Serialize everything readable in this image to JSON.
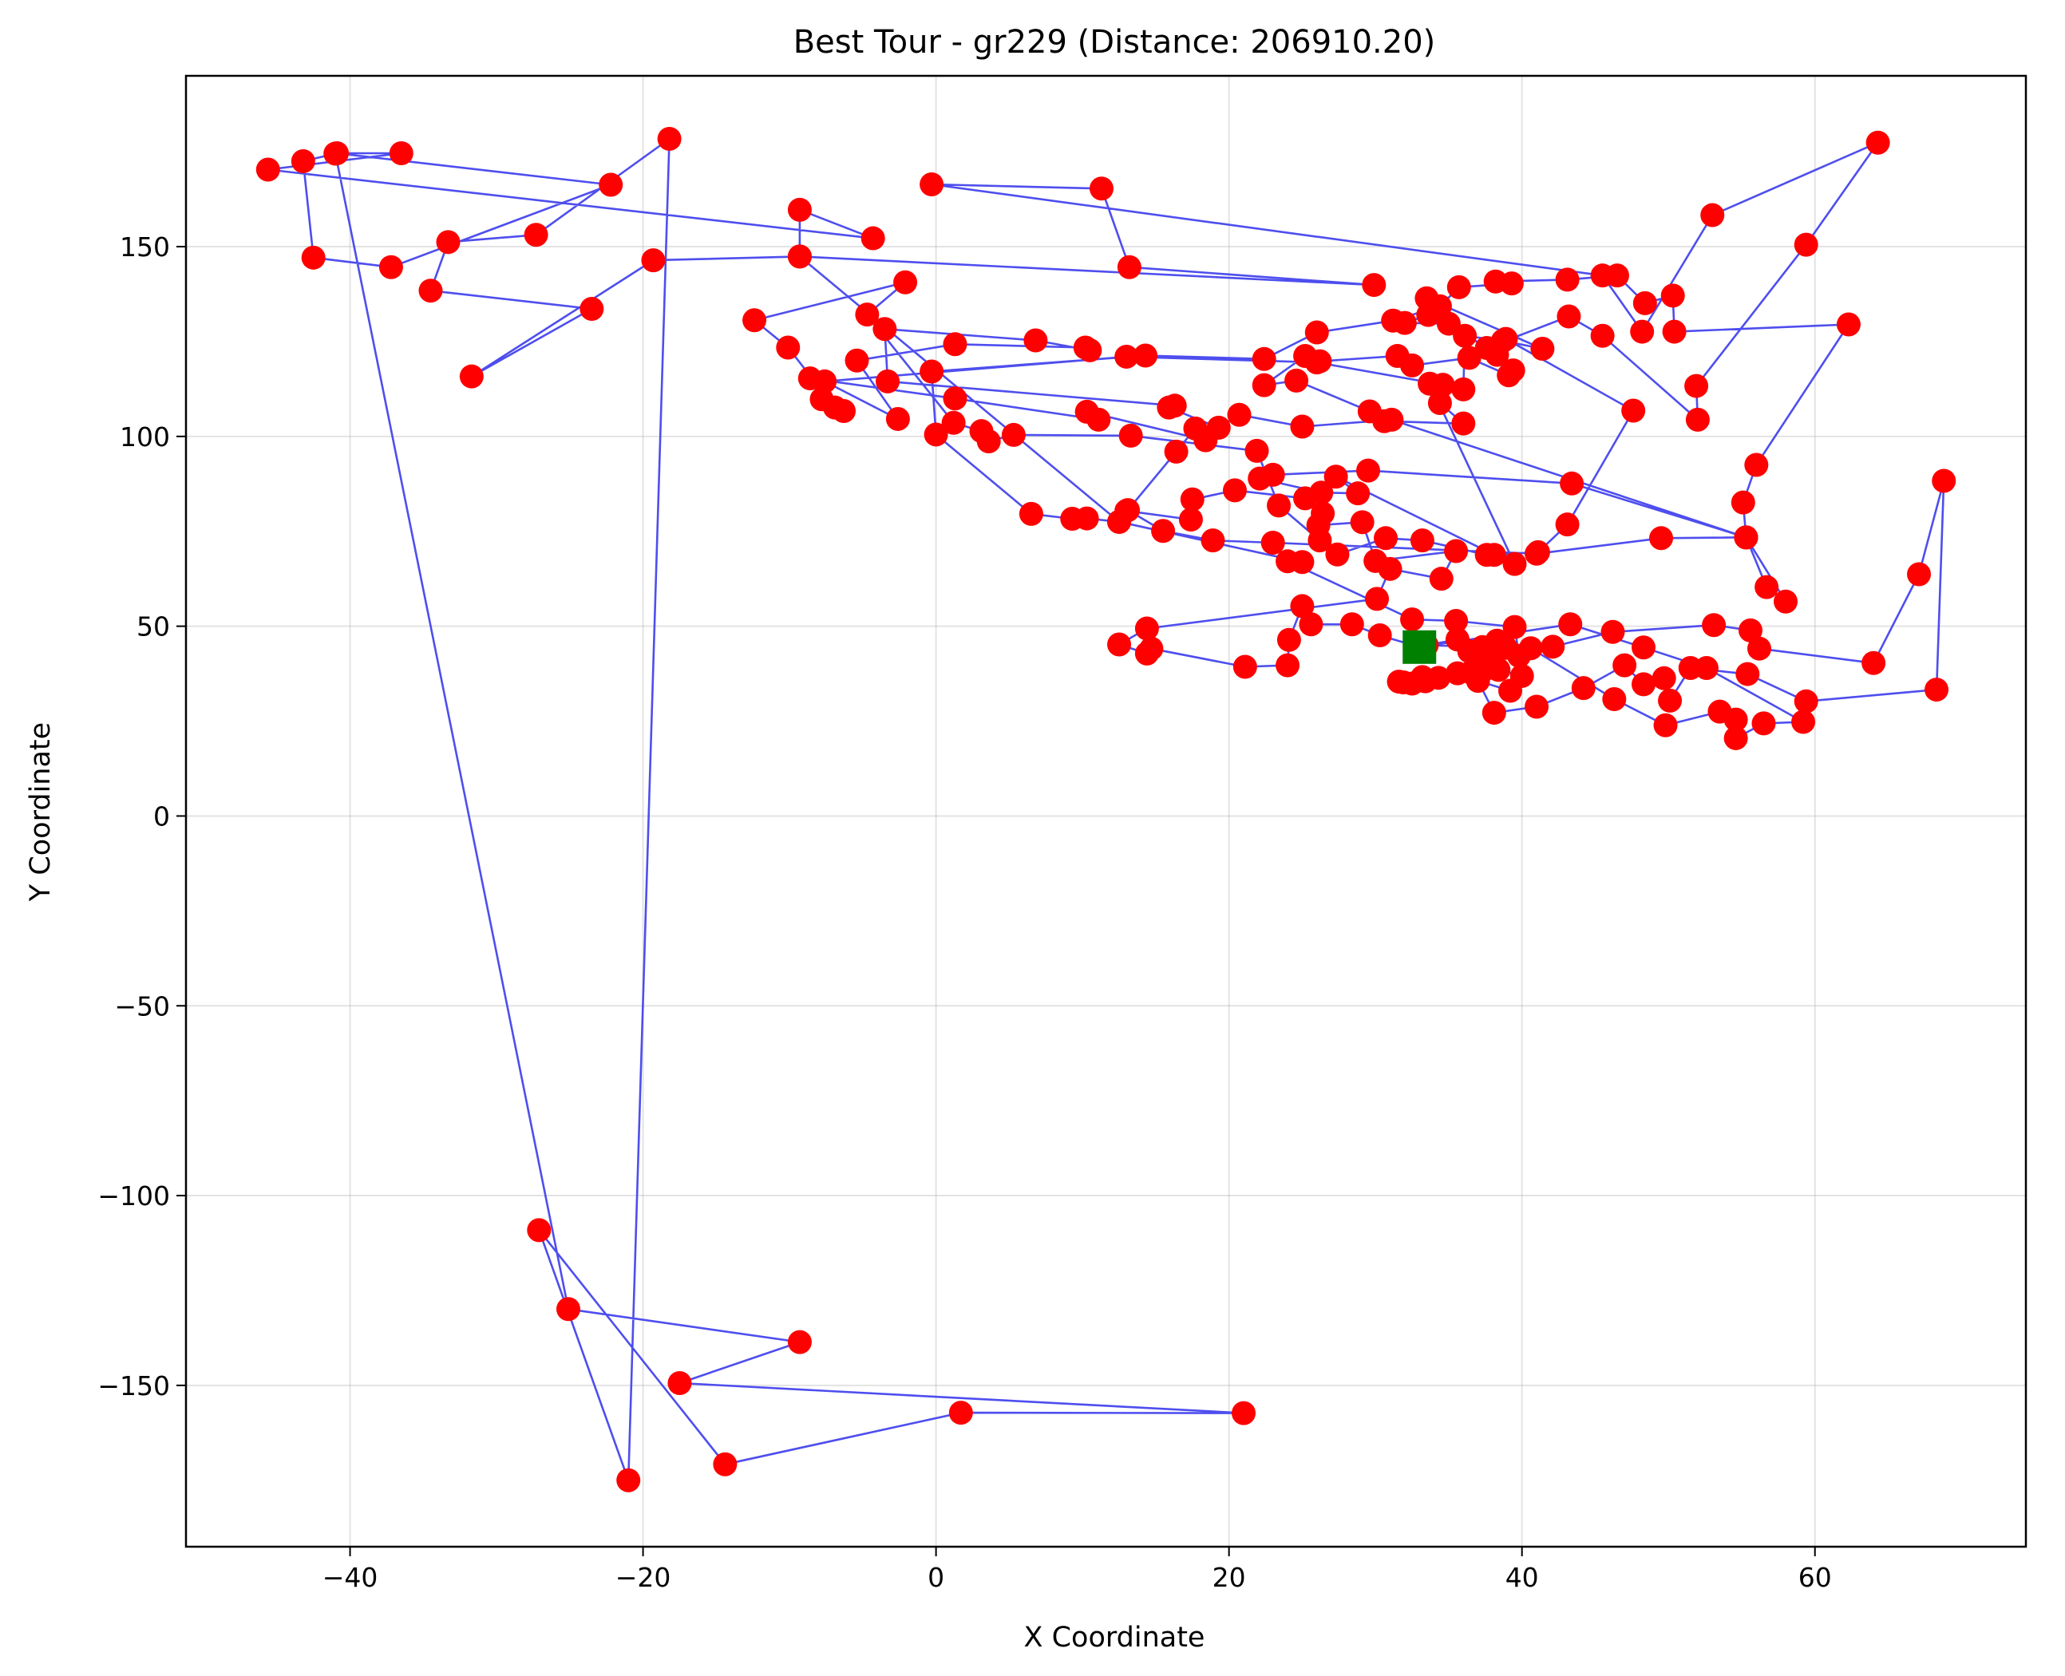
{
  "chart_data": {
    "type": "scatter",
    "title": "Best Tour - gr229 (Distance: 206910.20)",
    "xlabel": "X Coordinate",
    "ylabel": "Y Coordinate",
    "xlim": [
      -51.2,
      74.4
    ],
    "ylim": [
      -192.5,
      195.0
    ],
    "xticks": [
      -40,
      -20,
      0,
      20,
      40,
      60
    ],
    "yticks": [
      -150,
      -100,
      -50,
      0,
      50,
      100,
      150
    ],
    "xtick_labels": [
      "−40",
      "−20",
      "0",
      "20",
      "40",
      "60"
    ],
    "ytick_labels": [
      "−150",
      "−100",
      "−50",
      "0",
      "50",
      "100",
      "150"
    ],
    "grid": true,
    "colors": {
      "tour_line": "#4444ee",
      "city": "#ff0000",
      "start": "#008000"
    },
    "start": {
      "x": 33.0,
      "y": 44.5
    },
    "tour": [
      [
        33.0,
        44.5
      ],
      [
        30.3,
        47.6
      ],
      [
        28.4,
        50.5
      ],
      [
        25.6,
        50.5
      ],
      [
        25.0,
        55.3
      ],
      [
        24.1,
        46.4
      ],
      [
        24.0,
        39.7
      ],
      [
        21.1,
        39.3
      ],
      [
        14.7,
        44.1
      ],
      [
        14.4,
        42.8
      ],
      [
        12.5,
        45.2
      ],
      [
        14.4,
        49.4
      ],
      [
        30.1,
        57.2
      ],
      [
        31.0,
        65.1
      ],
      [
        34.5,
        62.5
      ],
      [
        35.5,
        69.8
      ],
      [
        30.0,
        67.2
      ],
      [
        29.1,
        77.4
      ],
      [
        26.1,
        76.6
      ],
      [
        26.4,
        79.7
      ],
      [
        25.2,
        83.7
      ],
      [
        20.4,
        85.8
      ],
      [
        17.5,
        83.4
      ],
      [
        17.4,
        78.1
      ],
      [
        13.0,
        80.4
      ],
      [
        12.5,
        77.5
      ],
      [
        10.3,
        78.4
      ],
      [
        9.3,
        78.3
      ],
      [
        6.5,
        79.6
      ],
      [
        0.0,
        100.5
      ],
      [
        -0.3,
        117.1
      ],
      [
        14.3,
        121.3
      ],
      [
        22.4,
        120.4
      ],
      [
        26.0,
        127.4
      ],
      [
        31.2,
        130.5
      ],
      [
        34.4,
        134.3
      ],
      [
        35.7,
        139.3
      ],
      [
        39.3,
        140.3
      ],
      [
        38.2,
        140.8
      ],
      [
        43.1,
        141.3
      ],
      [
        46.5,
        142.4
      ],
      [
        48.4,
        135.1
      ],
      [
        50.3,
        137.1
      ],
      [
        50.4,
        127.6
      ],
      [
        62.3,
        129.5
      ],
      [
        56.0,
        92.5
      ],
      [
        55.1,
        82.6
      ],
      [
        55.3,
        73.4
      ],
      [
        56.7,
        60.3
      ],
      [
        58.0,
        56.5
      ],
      [
        55.3,
        73.4
      ],
      [
        43.4,
        87.6
      ],
      [
        29.5,
        91.0
      ],
      [
        23.0,
        89.9
      ],
      [
        22.1,
        88.9
      ],
      [
        26.3,
        85.2
      ],
      [
        28.8,
        85.0
      ],
      [
        27.3,
        89.4
      ],
      [
        38.1,
        68.8
      ],
      [
        41.1,
        69.5
      ],
      [
        43.1,
        76.8
      ],
      [
        47.6,
        106.8
      ],
      [
        38.9,
        125.7
      ],
      [
        38.3,
        121.5
      ],
      [
        39.4,
        117.4
      ],
      [
        39.1,
        116.1
      ],
      [
        36.4,
        120.7
      ],
      [
        32.5,
        118.7
      ],
      [
        31.5,
        121.2
      ],
      [
        26.2,
        119.8
      ],
      [
        25.2,
        121.2
      ],
      [
        22.4,
        113.5
      ],
      [
        24.6,
        114.7
      ],
      [
        29.6,
        106.6
      ],
      [
        30.6,
        104.0
      ],
      [
        36.0,
        103.4
      ],
      [
        34.4,
        108.8
      ],
      [
        34.6,
        113.6
      ],
      [
        26.0,
        119.5
      ],
      [
        13.0,
        121.0
      ],
      [
        -7.6,
        114.5
      ],
      [
        -2.6,
        104.6
      ],
      [
        -5.4,
        120.0
      ],
      [
        1.3,
        124.3
      ],
      [
        10.2,
        123.4
      ],
      [
        10.5,
        122.7
      ],
      [
        6.8,
        125.3
      ],
      [
        -3.5,
        128.3
      ],
      [
        -3.3,
        114.5
      ],
      [
        16.3,
        108.1
      ],
      [
        15.9,
        107.6
      ],
      [
        19.3,
        102.3
      ],
      [
        20.7,
        105.7
      ],
      [
        25.0,
        102.6
      ],
      [
        31.1,
        104.4
      ],
      [
        55.3,
        73.4
      ],
      [
        49.5,
        73.2
      ],
      [
        41.0,
        69.1
      ],
      [
        23.0,
        72.0
      ],
      [
        18.9,
        72.6
      ],
      [
        15.5,
        75.1
      ],
      [
        13.1,
        80.6
      ],
      [
        16.4,
        96.0
      ],
      [
        17.7,
        102.1
      ],
      [
        18.4,
        99.0
      ],
      [
        10.3,
        106.5
      ],
      [
        11.1,
        104.4
      ],
      [
        1.3,
        110.0
      ],
      [
        -8.6,
        115.3
      ],
      [
        -7.8,
        109.8
      ],
      [
        -6.3,
        106.7
      ],
      [
        -6.9,
        107.6
      ],
      [
        -10.1,
        123.4
      ],
      [
        -12.4,
        130.6
      ],
      [
        -2.1,
        140.6
      ],
      [
        -4.7,
        132.1
      ],
      [
        1.2,
        103.6
      ],
      [
        3.1,
        101.4
      ],
      [
        3.6,
        98.7
      ],
      [
        5.3,
        100.4
      ],
      [
        13.3,
        100.2
      ],
      [
        21.9,
        96.2
      ],
      [
        23.4,
        81.8
      ],
      [
        26.2,
        72.6
      ],
      [
        27.4,
        68.9
      ],
      [
        30.7,
        73.2
      ],
      [
        33.2,
        72.6
      ],
      [
        37.6,
        68.8
      ],
      [
        39.5,
        66.4
      ],
      [
        33.7,
        113.9
      ],
      [
        36.0,
        112.4
      ],
      [
        36.1,
        126.5
      ],
      [
        38.7,
        125.2
      ],
      [
        41.4,
        123.1
      ],
      [
        33.5,
        136.4
      ],
      [
        33.6,
        132.0
      ],
      [
        32.0,
        129.9
      ],
      [
        35.0,
        129.7
      ],
      [
        37.6,
        123.3
      ],
      [
        43.2,
        131.6
      ],
      [
        45.5,
        126.5
      ],
      [
        52.0,
        104.4
      ],
      [
        51.9,
        113.3
      ],
      [
        59.4,
        150.5
      ],
      [
        64.3,
        177.4
      ],
      [
        53.0,
        158.3
      ],
      [
        48.2,
        127.6
      ],
      [
        45.5,
        142.4
      ],
      [
        -0.3,
        166.4
      ],
      [
        11.3,
        165.3
      ],
      [
        13.2,
        144.6
      ],
      [
        29.9,
        139.9
      ],
      [
        -9.3,
        147.4
      ],
      [
        -19.3,
        146.4
      ],
      [
        -31.7,
        115.8
      ],
      [
        -23.5,
        133.6
      ],
      [
        -34.5,
        138.4
      ],
      [
        -33.3,
        151.2
      ],
      [
        -27.3,
        153.1
      ],
      [
        -18.2,
        178.4
      ],
      [
        -21.0,
        -175.0
      ],
      [
        -27.1,
        -109.1
      ],
      [
        -14.4,
        -170.8
      ],
      [
        1.7,
        -157.2
      ],
      [
        21.0,
        -157.3
      ],
      [
        -17.5,
        -149.4
      ],
      [
        -9.3,
        -138.6
      ],
      [
        -25.1,
        -129.9
      ],
      [
        -41.0,
        174.5
      ],
      [
        -43.2,
        172.5
      ],
      [
        -42.5,
        147.1
      ],
      [
        -37.2,
        144.6
      ],
      [
        -22.2,
        166.3
      ],
      [
        -40.9,
        174.6
      ],
      [
        -36.5,
        174.6
      ],
      [
        -45.6,
        170.3
      ],
      [
        -4.3,
        152.2
      ],
      [
        -9.3,
        159.7
      ],
      [
        -9.3,
        147.4
      ],
      [
        12.5,
        77.5
      ],
      [
        25.0,
        66.9
      ],
      [
        24.0,
        67.1
      ],
      [
        32.5,
        51.8
      ],
      [
        35.5,
        51.4
      ],
      [
        39.5,
        49.8
      ],
      [
        39.8,
        42.2
      ],
      [
        42.1,
        44.6
      ],
      [
        46.2,
        48.5
      ],
      [
        53.1,
        50.3
      ],
      [
        55.6,
        48.9
      ],
      [
        56.2,
        44.1
      ],
      [
        64.0,
        40.3
      ],
      [
        67.1,
        63.7
      ],
      [
        68.8,
        88.3
      ],
      [
        68.3,
        33.3
      ],
      [
        59.4,
        30.2
      ],
      [
        55.4,
        37.4
      ],
      [
        51.5,
        39.0
      ],
      [
        50.1,
        30.4
      ],
      [
        49.7,
        36.3
      ],
      [
        48.3,
        34.7
      ],
      [
        47.0,
        39.7
      ],
      [
        44.2,
        33.7
      ],
      [
        41.0,
        28.8
      ],
      [
        38.1,
        27.2
      ],
      [
        37.0,
        35.6
      ],
      [
        39.2,
        33.0
      ],
      [
        40.0,
        36.9
      ],
      [
        38.4,
        38.5
      ],
      [
        35.6,
        37.6
      ],
      [
        34.3,
        36.4
      ],
      [
        33.4,
        35.5
      ],
      [
        31.9,
        35.2
      ],
      [
        32.5,
        34.9
      ],
      [
        31.6,
        35.4
      ],
      [
        33.2,
        36.6
      ],
      [
        36.5,
        37.8
      ],
      [
        37.4,
        38.5
      ],
      [
        37.8,
        40.8
      ],
      [
        38.9,
        44.3
      ],
      [
        38.3,
        46.2
      ],
      [
        37.3,
        44.5
      ],
      [
        36.4,
        43.4
      ],
      [
        35.6,
        46.5
      ],
      [
        33.5,
        45.0
      ],
      [
        40.6,
        44.2
      ],
      [
        46.3,
        30.8
      ],
      [
        49.8,
        23.9
      ],
      [
        53.5,
        27.5
      ],
      [
        54.6,
        25.4
      ],
      [
        54.6,
        20.5
      ],
      [
        56.5,
        24.4
      ],
      [
        59.2,
        24.8
      ],
      [
        52.6,
        39.0
      ],
      [
        48.3,
        44.4
      ],
      [
        43.3,
        50.5
      ],
      [
        33.0,
        44.5
      ]
    ]
  }
}
